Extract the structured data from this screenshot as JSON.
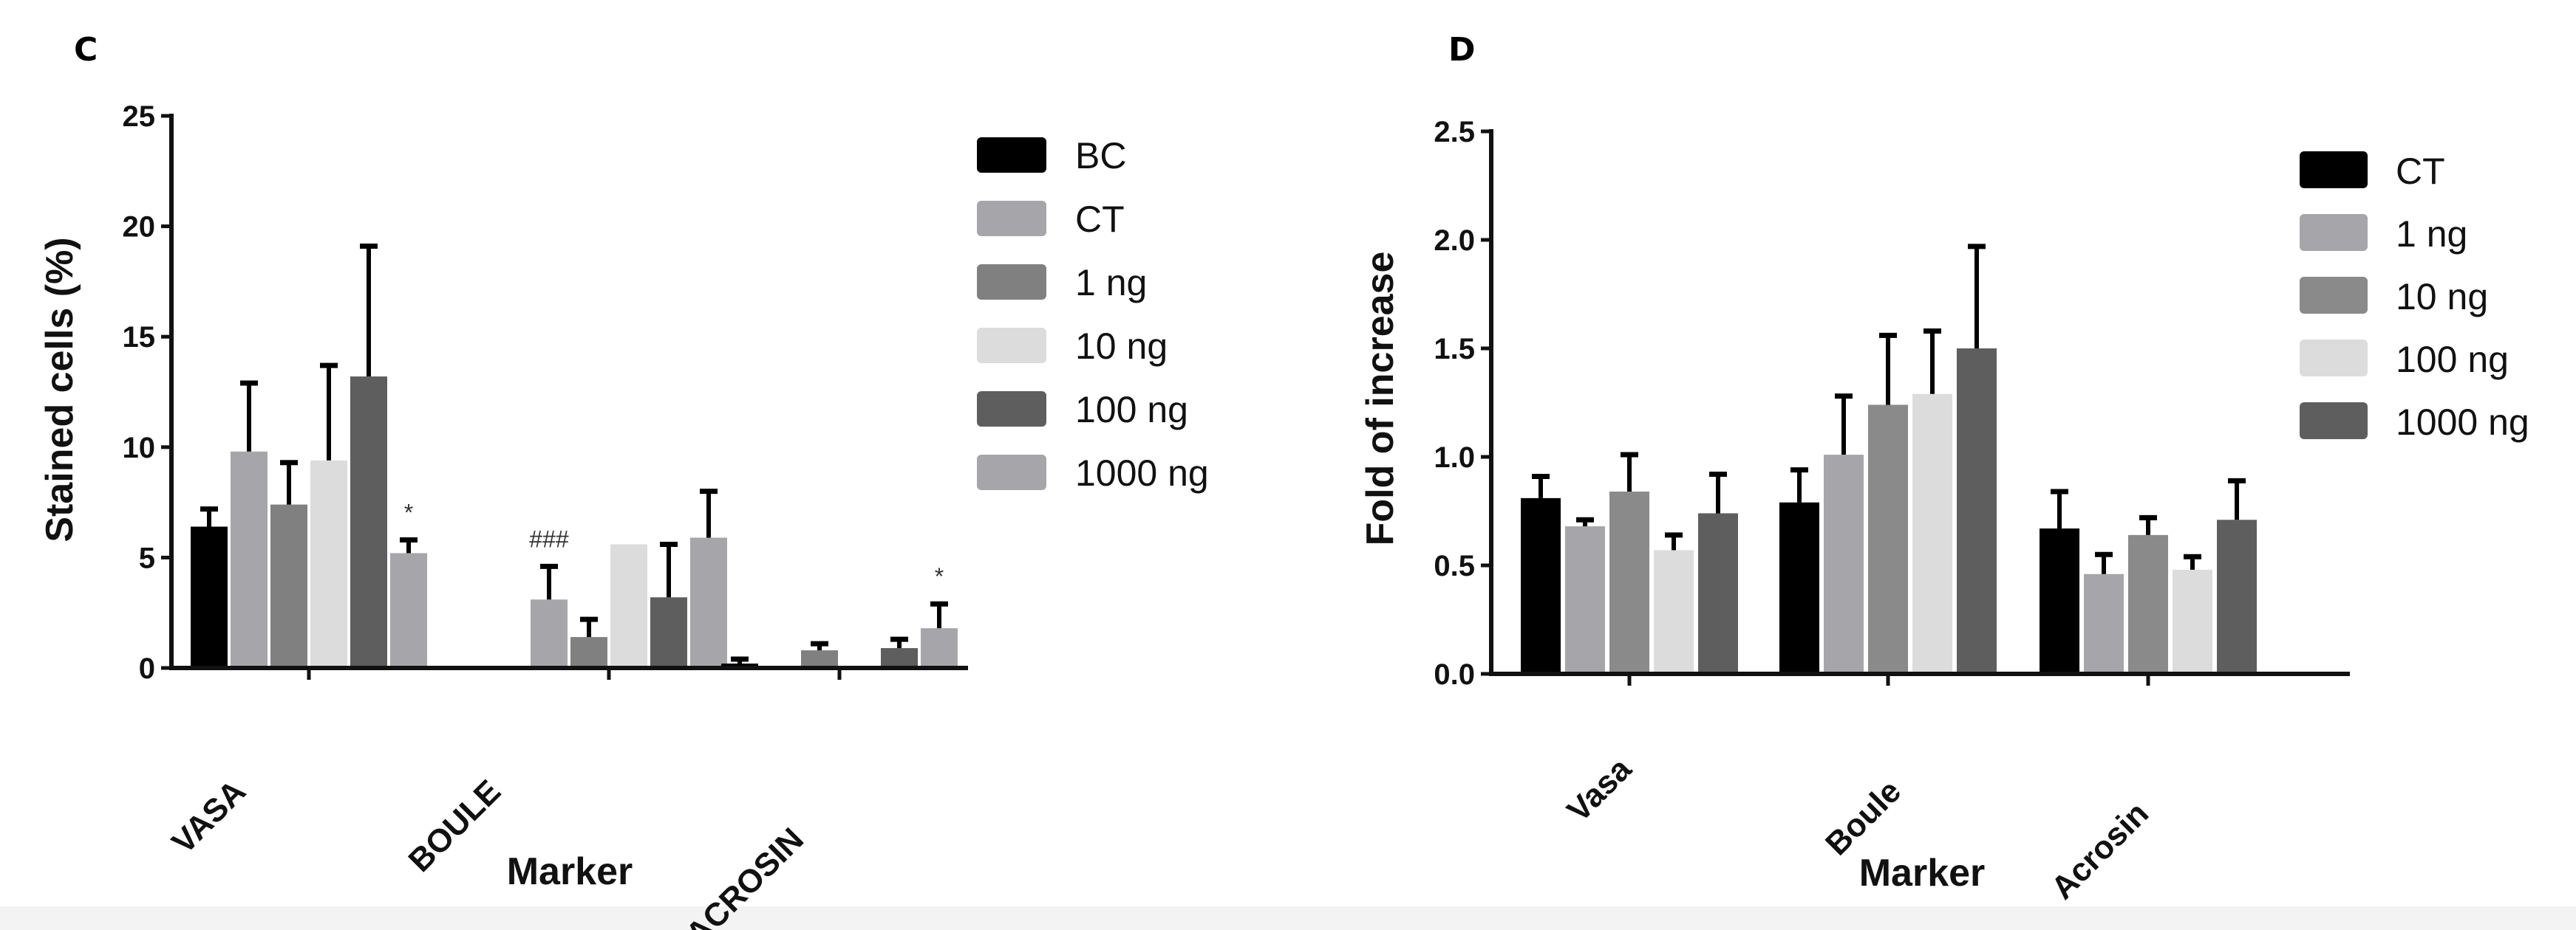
{
  "chart_data": [
    {
      "panel": "C",
      "type": "bar",
      "xlabel": "Marker",
      "ylabel": "Stained cells (%)",
      "ylim": [
        0,
        25
      ],
      "yticks": [
        "0",
        "5",
        "10",
        "15",
        "20",
        "25"
      ],
      "categories": [
        "VASA",
        "BOULE",
        "ACROSIN"
      ],
      "series": [
        {
          "name": "BC",
          "color": "#000000",
          "values": [
            6.4,
            0,
            0.2
          ],
          "errors": [
            0.8,
            0,
            0.2
          ]
        },
        {
          "name": "CT",
          "color": "#a6a6aa",
          "values": [
            9.8,
            3.1,
            0
          ],
          "errors": [
            3.1,
            1.5,
            0
          ]
        },
        {
          "name": "1 ng",
          "color": "#808080",
          "values": [
            7.4,
            1.4,
            0.8
          ],
          "errors": [
            1.9,
            0.8,
            0.3
          ]
        },
        {
          "name": "10 ng",
          "color": "#dcdcdc",
          "values": [
            9.4,
            5.6,
            0
          ],
          "errors": [
            4.3,
            0,
            0
          ]
        },
        {
          "name": "100 ng",
          "color": "#5e5e5e",
          "values": [
            13.2,
            3.2,
            0.9
          ],
          "errors": [
            5.9,
            2.4,
            0.4
          ]
        },
        {
          "name": "1000 ng",
          "color": "#a6a6aa",
          "values": [
            5.2,
            5.9,
            1.8
          ],
          "errors": [
            0.6,
            2.1,
            1.1
          ]
        }
      ],
      "annotations": [
        {
          "text": "*",
          "category": "VASA",
          "series": "1000 ng"
        },
        {
          "text": "###",
          "category": "BOULE",
          "series": "CT"
        },
        {
          "text": "*",
          "category": "ACROSIN",
          "series": "1000 ng"
        }
      ]
    },
    {
      "panel": "D",
      "type": "bar",
      "xlabel": "Marker",
      "ylabel": "Fold of increase",
      "ylim": [
        0,
        2.5
      ],
      "yticks": [
        "0.0",
        "0.5",
        "1.0",
        "1.5",
        "2.0",
        "2.5"
      ],
      "categories": [
        "Vasa",
        "Boule",
        "Acrosin"
      ],
      "series": [
        {
          "name": "CT",
          "color": "#000000",
          "values": [
            0.81,
            0.79,
            0.67
          ],
          "errors": [
            0.1,
            0.15,
            0.17
          ]
        },
        {
          "name": "1 ng",
          "color": "#a6a6aa",
          "values": [
            0.68,
            1.01,
            0.46
          ],
          "errors": [
            0.03,
            0.27,
            0.09
          ]
        },
        {
          "name": "10 ng",
          "color": "#8a8a8a",
          "values": [
            0.84,
            1.24,
            0.64
          ],
          "errors": [
            0.17,
            0.32,
            0.08
          ]
        },
        {
          "name": "100 ng",
          "color": "#dcdcdc",
          "values": [
            0.57,
            1.29,
            0.48
          ],
          "errors": [
            0.07,
            0.29,
            0.06
          ]
        },
        {
          "name": "1000 ng",
          "color": "#5e5e5e",
          "values": [
            0.74,
            1.5,
            0.71
          ],
          "errors": [
            0.18,
            0.47,
            0.18
          ]
        }
      ]
    }
  ]
}
